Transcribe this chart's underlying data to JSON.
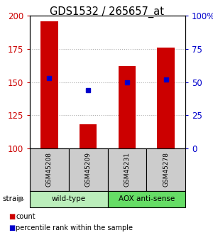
{
  "title": "GDS1532 / 265657_at",
  "samples": [
    "GSM45208",
    "GSM45209",
    "GSM45231",
    "GSM45278"
  ],
  "counts": [
    196,
    118,
    162,
    176
  ],
  "percentiles": [
    53,
    44,
    50,
    52
  ],
  "ymin": 100,
  "ymax": 200,
  "yticks_left": [
    100,
    125,
    150,
    175,
    200
  ],
  "yticks_right": [
    0,
    25,
    50,
    75,
    100
  ],
  "bar_color": "#cc0000",
  "dot_color": "#0000cc",
  "groups": [
    {
      "label": "wild-type",
      "color": "#bbeebb"
    },
    {
      "label": "AOX anti-sense",
      "color": "#66dd66"
    }
  ],
  "strain_label": "strain",
  "legend_count": "count",
  "legend_pct": "percentile rank within the sample",
  "grid_color": "#aaaaaa",
  "bar_width": 0.45
}
